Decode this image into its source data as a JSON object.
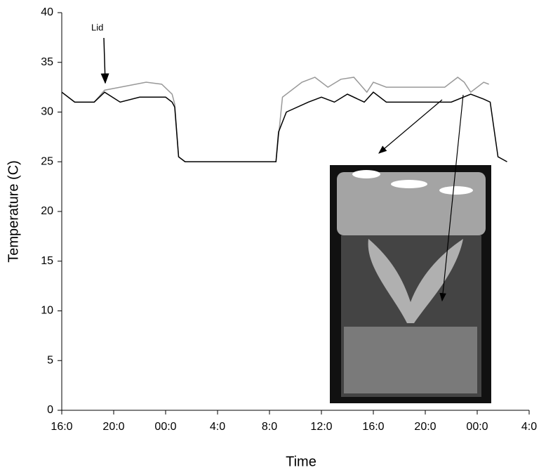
{
  "chart_data": {
    "type": "line",
    "xlabel": "Time",
    "ylabel": "Temperature (C)",
    "annotation": "Lid",
    "xlim": [
      0,
      36
    ],
    "ylim": [
      0,
      40
    ],
    "xticks": [
      {
        "value": 0,
        "label": "16:0"
      },
      {
        "value": 4,
        "label": "20:0"
      },
      {
        "value": 8,
        "label": "00:0"
      },
      {
        "value": 12,
        "label": "4:0"
      },
      {
        "value": 16,
        "label": "8:0"
      },
      {
        "value": 20,
        "label": "12:0"
      },
      {
        "value": 24,
        "label": "16:0"
      },
      {
        "value": 28,
        "label": "20:0"
      },
      {
        "value": 32,
        "label": "00:0"
      },
      {
        "value": 36,
        "label": "4:0"
      }
    ],
    "yticks": [
      0,
      5,
      10,
      15,
      20,
      25,
      30,
      35,
      40
    ],
    "series": [
      {
        "color": "#999999",
        "x": [
          0,
          1,
          2.5,
          3.3,
          4.5,
          6.5,
          7.7,
          8.5,
          8.7,
          9,
          9.5,
          16.5,
          17,
          18.5,
          19.5,
          20.5,
          21.5,
          22.5,
          23.5,
          24,
          25,
          29.5,
          30.5,
          31,
          31.5,
          32.5,
          32.9
        ],
        "values": [
          32,
          31,
          31,
          32.2,
          32.5,
          33,
          32.8,
          31.8,
          30.8,
          25.5,
          25,
          25,
          31.5,
          33,
          33.5,
          32.5,
          33.3,
          33.5,
          32,
          33,
          32.5,
          32.5,
          33.5,
          33,
          32,
          33,
          32.8
        ]
      },
      {
        "color": "#000000",
        "x": [
          0,
          1,
          2.5,
          3.3,
          4.5,
          6,
          8,
          8.5,
          8.7,
          9,
          9.5,
          16.5,
          16.7,
          17.3,
          19,
          20,
          21,
          22,
          23.3,
          24,
          25,
          30,
          31.5,
          32.5,
          33,
          33.6,
          34.3
        ],
        "values": [
          32,
          31,
          31,
          32,
          31,
          31.5,
          31.5,
          31,
          30.5,
          25.5,
          25,
          25,
          28,
          30,
          31,
          31.5,
          31,
          31.8,
          31,
          32,
          31,
          31,
          31.8,
          31.3,
          31,
          25.5,
          25
        ]
      }
    ]
  }
}
